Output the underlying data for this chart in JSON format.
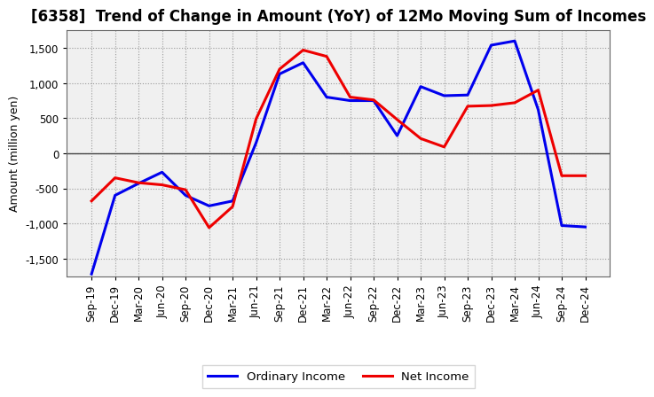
{
  "title": "[6358]  Trend of Change in Amount (YoY) of 12Mo Moving Sum of Incomes",
  "ylabel": "Amount (million yen)",
  "xlabels": [
    "Sep-19",
    "Dec-19",
    "Mar-20",
    "Jun-20",
    "Sep-20",
    "Dec-20",
    "Mar-21",
    "Jun-21",
    "Sep-21",
    "Dec-21",
    "Mar-22",
    "Jun-22",
    "Sep-22",
    "Dec-22",
    "Mar-23",
    "Jun-23",
    "Sep-23",
    "Dec-23",
    "Mar-24",
    "Jun-24",
    "Sep-24",
    "Dec-24"
  ],
  "ordinary_income": [
    -1720,
    -600,
    -430,
    -270,
    -600,
    -750,
    -680,
    150,
    1130,
    1290,
    800,
    750,
    750,
    250,
    950,
    820,
    830,
    1540,
    1600,
    620,
    -1030,
    -1050
  ],
  "net_income": [
    -680,
    -350,
    -420,
    -450,
    -520,
    -1060,
    -760,
    490,
    1200,
    1470,
    1380,
    800,
    760,
    480,
    210,
    90,
    670,
    680,
    720,
    900,
    -320,
    -320
  ],
  "ordinary_color": "#0000EE",
  "net_color": "#EE0000",
  "ylim": [
    -1750,
    1750
  ],
  "yticks": [
    -1500,
    -1000,
    -500,
    0,
    500,
    1000,
    1500
  ],
  "legend_labels": [
    "Ordinary Income",
    "Net Income"
  ],
  "line_width": 2.2,
  "bg_color": "#ffffff",
  "plot_bg_color": "#f0f0f0",
  "grid_color": "#999999",
  "title_fontsize": 12,
  "axis_fontsize": 9,
  "tick_fontsize": 8.5
}
